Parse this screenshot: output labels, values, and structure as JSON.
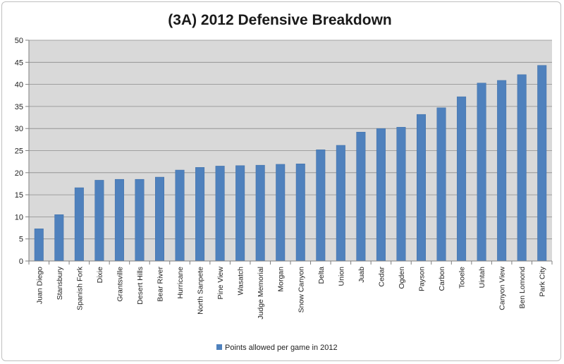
{
  "chart_data": {
    "type": "bar",
    "title": "(3A) 2012 Defensive Breakdown",
    "xlabel": "",
    "ylabel": "",
    "ylim": [
      0,
      50
    ],
    "yticks": [
      0,
      5,
      10,
      15,
      20,
      25,
      30,
      35,
      40,
      45,
      50
    ],
    "grid": true,
    "legend_position": "bottom",
    "categories": [
      "Juan Diego",
      "Stansbury",
      "Spanish Fork",
      "Dixie",
      "Grantsville",
      "Desert Hills",
      "Bear River",
      "Hurricane",
      "North Sanpete",
      "Pine View",
      "Wasatch",
      "Judge Memorial",
      "Morgan",
      "Snow Canyon",
      "Delta",
      "Union",
      "Juab",
      "Cedar",
      "Ogden",
      "Payson",
      "Carbon",
      "Tooele",
      "Uintah",
      "Canyon View",
      "Ben Lomond",
      "Park City"
    ],
    "series": [
      {
        "name": "Points allowed per game in 2012",
        "color": "#4f81bd",
        "values": [
          7.3,
          10.5,
          16.6,
          18.3,
          18.5,
          18.5,
          19.0,
          20.6,
          21.2,
          21.5,
          21.6,
          21.7,
          21.9,
          22.0,
          25.2,
          26.2,
          29.2,
          30.0,
          30.3,
          33.2,
          34.7,
          37.2,
          40.3,
          40.9,
          42.2,
          44.3
        ]
      }
    ],
    "colors": {
      "plot_background": "#d9d9d9",
      "gridline": "#8c8c8c",
      "axis": "#7f7f7f"
    }
  }
}
